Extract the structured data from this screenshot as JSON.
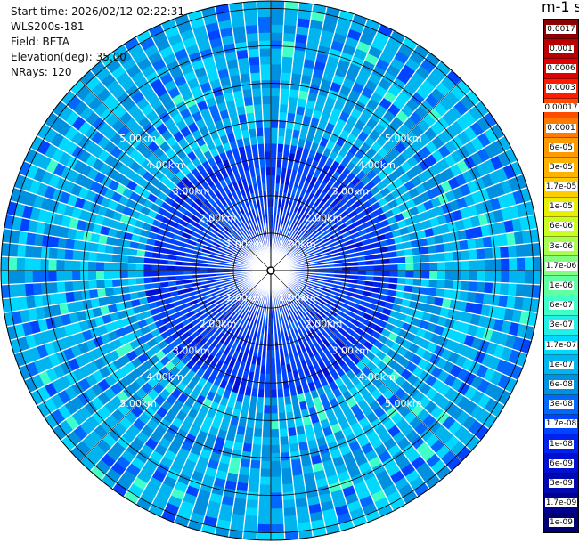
{
  "info": {
    "start_time": "Start time: 2026/02/12 02:22:31",
    "instrument": "WLS200s-181",
    "field": "Field: BETA",
    "elevation": "Elevation(deg): 35.00",
    "nrays": "NRays: 120"
  },
  "units_title": "m-1 sr-1",
  "chart_data": {
    "type": "heatmap",
    "projection": "polar-ppi",
    "field": "BETA",
    "nrays": 120,
    "elevation_deg": 35.0,
    "range_rings_km": [
      1.0,
      2.0,
      3.0,
      4.0,
      5.0
    ],
    "range_ring_labels": [
      "1.00km",
      "2.00km",
      "3.00km",
      "4.00km",
      "5.00km"
    ],
    "max_range_km": 7.2,
    "color_scale": "log",
    "colorbar": {
      "labels": [
        "0.0017",
        "0.001",
        "0.0006",
        "0.0003",
        "0.00017",
        "0.0001",
        "6e-05",
        "3e-05",
        "1.7e-05",
        "1e-05",
        "6e-06",
        "3e-06",
        "1.7e-06",
        "1e-06",
        "6e-07",
        "3e-07",
        "1.7e-07",
        "1e-07",
        "6e-08",
        "3e-08",
        "1.7e-08",
        "1e-08",
        "6e-09",
        "3e-09",
        "1.7e-09",
        "1e-09"
      ],
      "colors": [
        "#8b0000",
        "#b80000",
        "#e00000",
        "#ff1a00",
        "#ff4d00",
        "#ff7a00",
        "#ff9900",
        "#ffb300",
        "#ffcc00",
        "#e8f000",
        "#c8ff20",
        "#a8ff50",
        "#80ff80",
        "#60ffa0",
        "#40ffc8",
        "#20f0e8",
        "#00d8ff",
        "#00b4f0",
        "#0090e0",
        "#0068ff",
        "#0044ff",
        "#0022ee",
        "#0010d0",
        "#0008b0",
        "#000090",
        "#000070"
      ]
    },
    "typical_value_range": [
      "1e-08",
      "1.7e-07"
    ],
    "grid": true
  }
}
